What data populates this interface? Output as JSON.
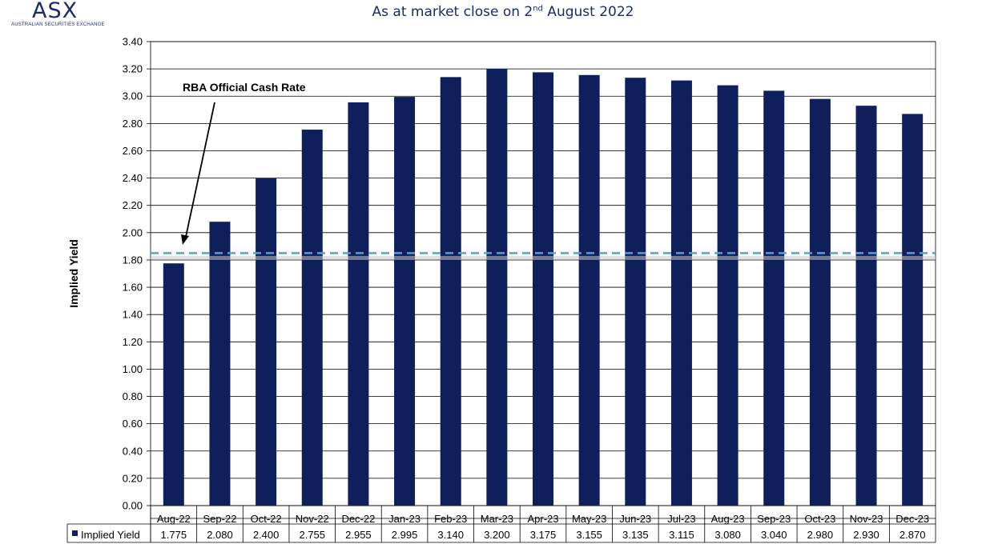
{
  "logo": {
    "mark": "ASX",
    "subtitle": "AUSTRALIAN SECURITIES EXCHANGE"
  },
  "title": {
    "prefix": "As at market close on 2",
    "superscript": "nd",
    "suffix": " August 2022"
  },
  "colors": {
    "bar": "#0e1f5b",
    "cash_rate_line": "#4aa3df",
    "grid": "#000000"
  },
  "chart_data": {
    "type": "bar",
    "categories": [
      "Aug-22",
      "Sep-22",
      "Oct-22",
      "Nov-22",
      "Dec-22",
      "Jan-23",
      "Feb-23",
      "Mar-23",
      "Apr-23",
      "May-23",
      "Jun-23",
      "Jul-23",
      "Aug-23",
      "Sep-23",
      "Oct-23",
      "Nov-23",
      "Dec-23"
    ],
    "series": [
      {
        "name": "Implied Yield",
        "values": [
          1.775,
          2.08,
          2.4,
          2.755,
          2.955,
          2.995,
          3.14,
          3.2,
          3.175,
          3.155,
          3.135,
          3.115,
          3.08,
          3.04,
          2.98,
          2.93,
          2.87
        ],
        "display": [
          "1.775",
          "2.080",
          "2.400",
          "2.755",
          "2.955",
          "2.995",
          "3.140",
          "3.200",
          "3.175",
          "3.155",
          "3.135",
          "3.115",
          "3.080",
          "3.040",
          "2.980",
          "2.930",
          "2.870"
        ]
      }
    ],
    "ylabel": "Implied Yield",
    "ylim": [
      0,
      3.4
    ],
    "yticks": [
      "0.00",
      "0.20",
      "0.40",
      "0.60",
      "0.80",
      "1.00",
      "1.20",
      "1.40",
      "1.60",
      "1.80",
      "2.00",
      "2.20",
      "2.40",
      "2.60",
      "2.80",
      "3.00",
      "3.20",
      "3.40"
    ],
    "grid": true,
    "reference_line": {
      "label": "RBA Official Cash Rate",
      "value": 1.85
    },
    "data_table": true
  }
}
